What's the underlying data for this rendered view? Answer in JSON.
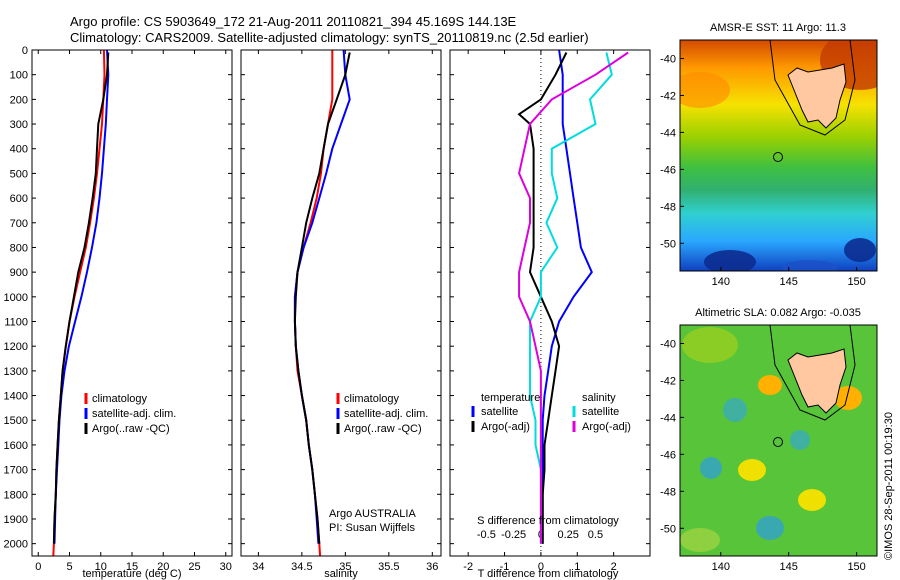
{
  "header": {
    "line1": "Argo profile: CS 5903649_172 21-Aug-2011 20110821_394 45.169S 144.13E",
    "line2": "Climatology: CARS2009. Satellite-adjusted climatology: synTS_20110819.nc (2.5d earlier)"
  },
  "footer": {
    "credit": "©IMOS 28-Sep-2011 00:19:30"
  },
  "colors": {
    "climatology": "#ff0000",
    "satellite": "#0000ff",
    "argo": "#000000",
    "salinity_satellite": "#00dddd",
    "salinity_argo": "#dd00dd"
  },
  "chart_data": [
    {
      "id": "temperature",
      "type": "line",
      "xlabel": "temperature (deg C)",
      "ylabel": "",
      "xlim": [
        -1,
        31
      ],
      "ylim": [
        2050,
        0
      ],
      "xticks": [
        0,
        5,
        10,
        15,
        20,
        25,
        30
      ],
      "yticks": [
        0,
        100,
        200,
        300,
        400,
        500,
        600,
        700,
        800,
        900,
        1000,
        1100,
        1200,
        1300,
        1400,
        1500,
        1600,
        1700,
        1800,
        1900,
        2000
      ],
      "legend": [
        "climatology",
        "satellite-adj. clim.",
        "Argo(..raw -QC)"
      ],
      "series": [
        {
          "name": "climatology",
          "color": "#ff0000",
          "points": [
            [
              10.5,
              0
            ],
            [
              10.6,
              100
            ],
            [
              10.4,
              200
            ],
            [
              10.2,
              300
            ],
            [
              9.8,
              400
            ],
            [
              9.4,
              500
            ],
            [
              8.9,
              600
            ],
            [
              8.3,
              700
            ],
            [
              7.6,
              800
            ],
            [
              6.7,
              900
            ],
            [
              5.8,
              1000
            ],
            [
              5.0,
              1100
            ],
            [
              4.4,
              1200
            ],
            [
              3.9,
              1300
            ],
            [
              3.6,
              1400
            ],
            [
              3.3,
              1500
            ],
            [
              3.1,
              1600
            ],
            [
              2.9,
              1700
            ],
            [
              2.8,
              1800
            ],
            [
              2.6,
              1900
            ],
            [
              2.5,
              2000
            ],
            [
              2.4,
              2050
            ]
          ]
        },
        {
          "name": "satellite-adj. clim.",
          "color": "#0000ff",
          "points": [
            [
              11.0,
              0
            ],
            [
              11.2,
              100
            ],
            [
              11.0,
              200
            ],
            [
              10.8,
              300
            ],
            [
              10.5,
              400
            ],
            [
              10.2,
              500
            ],
            [
              9.8,
              600
            ],
            [
              9.3,
              700
            ],
            [
              8.6,
              800
            ],
            [
              7.8,
              900
            ],
            [
              6.9,
              1000
            ],
            [
              5.9,
              1100
            ],
            [
              4.9,
              1200
            ],
            [
              4.2,
              1300
            ],
            [
              3.7,
              1400
            ],
            [
              3.4,
              1500
            ],
            [
              3.2,
              1600
            ],
            [
              3.0,
              1700
            ],
            [
              2.8,
              1800
            ],
            [
              2.7,
              1900
            ],
            [
              2.6,
              2000
            ]
          ]
        },
        {
          "name": "Argo(..raw -QC)",
          "color": "#000000",
          "points": [
            [
              11.2,
              10
            ],
            [
              11.0,
              100
            ],
            [
              10.4,
              200
            ],
            [
              9.6,
              300
            ],
            [
              9.4,
              400
            ],
            [
              9.2,
              500
            ],
            [
              8.7,
              600
            ],
            [
              8.1,
              700
            ],
            [
              7.4,
              800
            ],
            [
              6.4,
              900
            ],
            [
              5.7,
              1000
            ],
            [
              5.0,
              1100
            ],
            [
              4.4,
              1200
            ],
            [
              3.9,
              1300
            ],
            [
              3.6,
              1400
            ],
            [
              3.3,
              1500
            ],
            [
              3.1,
              1600
            ],
            [
              2.9,
              1700
            ],
            [
              2.8,
              1800
            ],
            [
              2.6,
              1900
            ],
            [
              2.5,
              2000
            ]
          ]
        }
      ]
    },
    {
      "id": "salinity",
      "type": "line",
      "xlabel": "salinity",
      "xlim": [
        33.8,
        36.1
      ],
      "ylim": [
        2050,
        0
      ],
      "xticks": [
        34,
        34.5,
        35,
        35.5,
        36
      ],
      "yticks": [
        0,
        100,
        200,
        300,
        400,
        500,
        600,
        700,
        800,
        900,
        1000,
        1100,
        1200,
        1300,
        1400,
        1500,
        1600,
        1700,
        1800,
        1900,
        2000
      ],
      "legend": [
        "climatology",
        "satellite-adj. clim.",
        "Argo(..raw -QC)"
      ],
      "annotation": [
        "Argo AUSTRALIA",
        "PI: Susan Wijffels"
      ],
      "series": [
        {
          "name": "climatology",
          "color": "#ff0000",
          "points": [
            [
              34.85,
              0
            ],
            [
              34.85,
              100
            ],
            [
              34.85,
              200
            ],
            [
              34.8,
              300
            ],
            [
              34.75,
              400
            ],
            [
              34.72,
              500
            ],
            [
              34.67,
              600
            ],
            [
              34.6,
              700
            ],
            [
              34.52,
              800
            ],
            [
              34.45,
              900
            ],
            [
              34.42,
              1000
            ],
            [
              34.42,
              1100
            ],
            [
              34.43,
              1200
            ],
            [
              34.45,
              1300
            ],
            [
              34.5,
              1400
            ],
            [
              34.55,
              1500
            ],
            [
              34.58,
              1600
            ],
            [
              34.62,
              1700
            ],
            [
              34.65,
              1800
            ],
            [
              34.68,
              1900
            ],
            [
              34.7,
              2000
            ],
            [
              34.71,
              2050
            ]
          ]
        },
        {
          "name": "satellite-adj. clim.",
          "color": "#0000ff",
          "points": [
            [
              34.98,
              0
            ],
            [
              35.0,
              100
            ],
            [
              35.05,
              200
            ],
            [
              34.95,
              300
            ],
            [
              34.85,
              400
            ],
            [
              34.78,
              500
            ],
            [
              34.7,
              600
            ],
            [
              34.62,
              700
            ],
            [
              34.52,
              800
            ],
            [
              34.45,
              900
            ],
            [
              34.42,
              1000
            ],
            [
              34.42,
              1100
            ],
            [
              34.43,
              1200
            ],
            [
              34.46,
              1300
            ],
            [
              34.5,
              1400
            ],
            [
              34.55,
              1500
            ],
            [
              34.58,
              1600
            ],
            [
              34.62,
              1700
            ],
            [
              34.65,
              1800
            ],
            [
              34.67,
              1900
            ],
            [
              34.69,
              2000
            ]
          ]
        },
        {
          "name": "Argo(..raw -QC)",
          "color": "#000000",
          "points": [
            [
              35.05,
              10
            ],
            [
              35.0,
              100
            ],
            [
              34.9,
              200
            ],
            [
              34.8,
              300
            ],
            [
              34.75,
              400
            ],
            [
              34.7,
              500
            ],
            [
              34.62,
              600
            ],
            [
              34.55,
              700
            ],
            [
              34.5,
              800
            ],
            [
              34.45,
              900
            ],
            [
              34.43,
              1000
            ],
            [
              34.42,
              1100
            ],
            [
              34.43,
              1200
            ],
            [
              34.46,
              1300
            ],
            [
              34.5,
              1400
            ],
            [
              34.55,
              1500
            ],
            [
              34.58,
              1600
            ],
            [
              34.62,
              1700
            ],
            [
              34.65,
              1800
            ],
            [
              34.68,
              1900
            ],
            [
              34.7,
              2000
            ]
          ]
        }
      ]
    },
    {
      "id": "difference",
      "type": "line",
      "xlabel": "T difference from climatology",
      "x2label": "S difference from climatology",
      "xlim": [
        -2.5,
        3.0
      ],
      "ylim": [
        2050,
        0
      ],
      "xticks": [
        -2,
        -1,
        0,
        1,
        2
      ],
      "x2ticks": [
        -0.5,
        -0.25,
        0,
        0.25,
        0.5
      ],
      "x2ticklabels": [
        "-0.5",
        "-0.25",
        "0",
        "0.25",
        "0.5"
      ],
      "yticks": [
        0,
        100,
        200,
        300,
        400,
        500,
        600,
        700,
        800,
        900,
        1000,
        1100,
        1200,
        1300,
        1400,
        1500,
        1600,
        1700,
        1800,
        1900,
        2000
      ],
      "legend_temperature": {
        "title": "temperature",
        "items": [
          "satellite",
          "Argo(-adj)"
        ]
      },
      "legend_salinity": {
        "title": "salinity",
        "items": [
          "satellite",
          "Argo(-adj)"
        ]
      },
      "series": [
        {
          "name": "temperature satellite",
          "color": "#0000ff",
          "points": [
            [
              0.5,
              0
            ],
            [
              0.6,
              100
            ],
            [
              0.6,
              200
            ],
            [
              0.6,
              300
            ],
            [
              0.7,
              400
            ],
            [
              0.8,
              500
            ],
            [
              0.9,
              600
            ],
            [
              1.0,
              700
            ],
            [
              1.1,
              800
            ],
            [
              1.4,
              900
            ],
            [
              0.9,
              1000
            ],
            [
              0.5,
              1100
            ],
            [
              0.3,
              1200
            ],
            [
              0.2,
              1300
            ],
            [
              0.1,
              1400
            ],
            [
              0.05,
              1500
            ],
            [
              0.05,
              1600
            ],
            [
              0.05,
              1700
            ],
            [
              0.05,
              1800
            ],
            [
              0.05,
              1900
            ],
            [
              0.05,
              2000
            ]
          ]
        },
        {
          "name": "temperature Argo(-adj)",
          "color": "#000000",
          "points": [
            [
              0.7,
              10
            ],
            [
              0.4,
              100
            ],
            [
              0.0,
              200
            ],
            [
              -0.6,
              260
            ],
            [
              -0.3,
              300
            ],
            [
              -0.2,
              400
            ],
            [
              -0.2,
              500
            ],
            [
              -0.2,
              600
            ],
            [
              -0.2,
              700
            ],
            [
              -0.2,
              800
            ],
            [
              -0.3,
              900
            ],
            [
              0.0,
              1000
            ],
            [
              0.3,
              1100
            ],
            [
              0.5,
              1200
            ],
            [
              0.4,
              1300
            ],
            [
              0.3,
              1400
            ],
            [
              0.2,
              1500
            ],
            [
              0.1,
              1600
            ],
            [
              0.1,
              1700
            ],
            [
              0.05,
              1800
            ],
            [
              0.05,
              1900
            ],
            [
              0.05,
              2000
            ]
          ]
        },
        {
          "name": "salinity satellite",
          "color": "#00dddd",
          "points": [
            [
              0.6,
              10
            ],
            [
              0.65,
              100
            ],
            [
              0.45,
              200
            ],
            [
              0.5,
              300
            ],
            [
              0.1,
              400
            ],
            [
              0.1,
              500
            ],
            [
              0.15,
              600
            ],
            [
              0.05,
              700
            ],
            [
              0.15,
              800
            ],
            [
              0.0,
              900
            ],
            [
              0.0,
              1000
            ],
            [
              -0.1,
              1100
            ],
            [
              -0.1,
              1200
            ],
            [
              -0.1,
              1300
            ],
            [
              -0.1,
              1400
            ],
            [
              -0.05,
              1500
            ],
            [
              -0.05,
              1600
            ],
            [
              0.0,
              1700
            ],
            [
              0.0,
              1800
            ],
            [
              0.0,
              1900
            ],
            [
              0.0,
              2000
            ]
          ]
        },
        {
          "name": "salinity Argo(-adj)",
          "color": "#dd00dd",
          "points": [
            [
              0.8,
              10
            ],
            [
              0.5,
              100
            ],
            [
              0.1,
              200
            ],
            [
              -0.1,
              300
            ],
            [
              -0.15,
              400
            ],
            [
              -0.2,
              500
            ],
            [
              -0.1,
              600
            ],
            [
              -0.1,
              700
            ],
            [
              -0.15,
              800
            ],
            [
              -0.2,
              900
            ],
            [
              -0.2,
              1000
            ],
            [
              -0.1,
              1100
            ],
            [
              -0.05,
              1200
            ],
            [
              0.0,
              1300
            ],
            [
              0.0,
              1400
            ],
            [
              0.0,
              1500
            ],
            [
              0.0,
              1600
            ],
            [
              0.0,
              1700
            ],
            [
              0.0,
              1800
            ],
            [
              0.0,
              1900
            ],
            [
              0.0,
              2000
            ]
          ]
        }
      ]
    },
    {
      "id": "sst_map",
      "type": "heatmap",
      "title": "AMSR-E SST: 11 Argo: 11.3",
      "xlim": [
        137,
        151.5
      ],
      "ylim": [
        -51.5,
        -39
      ],
      "xticks": [
        140,
        145,
        150
      ],
      "yticks": [
        -40,
        -42,
        -44,
        -46,
        -48,
        -50
      ],
      "argo_position": [
        144.13,
        -45.169
      ]
    },
    {
      "id": "sla_map",
      "type": "heatmap",
      "title": "Altimetric SLA: 0.082 Argo: -0.035",
      "xlim": [
        137,
        151.5
      ],
      "ylim": [
        -51.5,
        -39
      ],
      "xticks": [
        140,
        145,
        150
      ],
      "yticks": [
        -40,
        -42,
        -44,
        -46,
        -48,
        -50
      ],
      "argo_position": [
        144.13,
        -45.169
      ]
    }
  ]
}
